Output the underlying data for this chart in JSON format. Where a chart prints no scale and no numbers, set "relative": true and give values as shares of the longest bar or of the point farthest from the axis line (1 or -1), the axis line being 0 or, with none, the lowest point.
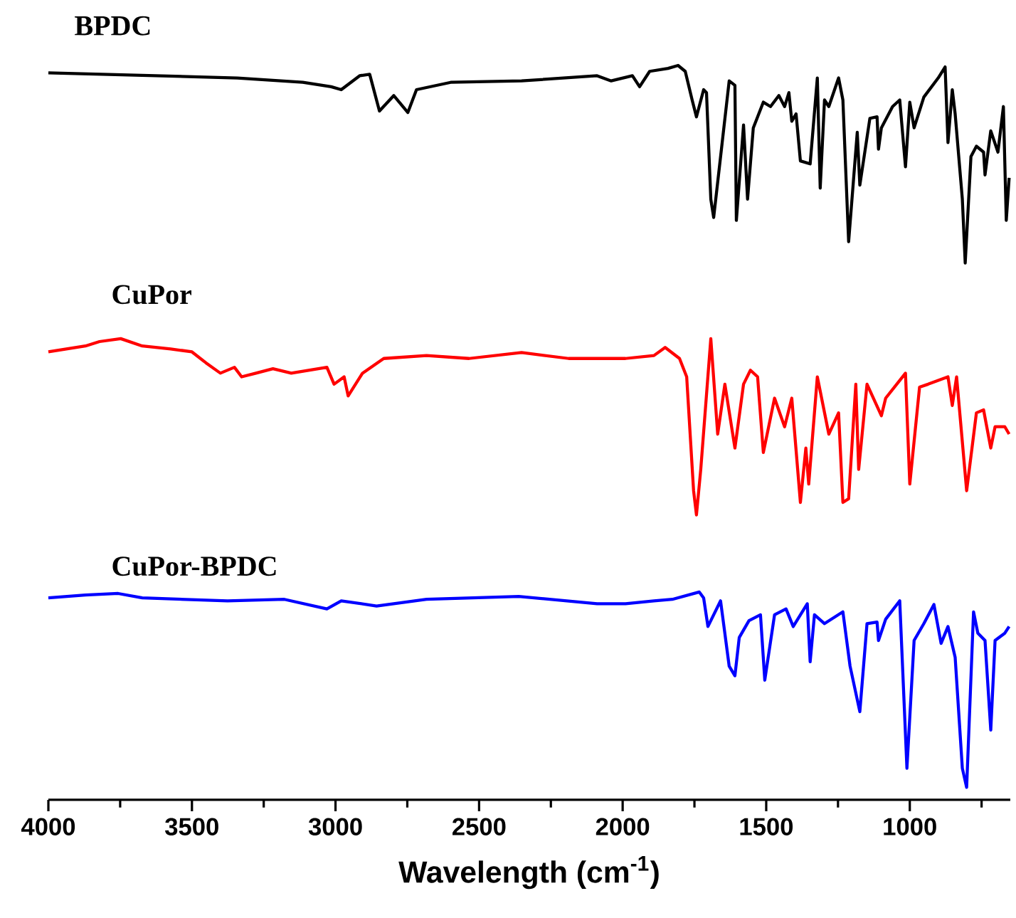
{
  "chart_data": {
    "type": "line",
    "relative": true,
    "xlabel": "Wavelength (cm$^{-1}$)",
    "xlim": [
      4000,
      650
    ],
    "xticks": [
      4000,
      {
        "value": 3750,
        "label": null
      },
      3500,
      {
        "value": 3250,
        "label": null
      },
      3000,
      {
        "value": 2750,
        "label": null
      },
      2500,
      {
        "value": 2250,
        "label": null
      },
      2000,
      {
        "value": 1750,
        "label": null
      },
      1500,
      {
        "value": 1250,
        "label": null
      },
      1000,
      {
        "value": 750,
        "label": null
      }
    ],
    "series": [
      {
        "name": "BPDC",
        "color": "#000000",
        "x": [
          4000,
          3342,
          3114,
          3015,
          2980,
          2916,
          2881,
          2847,
          2797,
          2748,
          2718,
          2599,
          2352,
          2089,
          2040,
          1966,
          1941,
          1906,
          1842,
          1807,
          1782,
          1758,
          1743,
          1718,
          1708,
          1693,
          1683,
          1629,
          1609,
          1604,
          1579,
          1565,
          1545,
          1510,
          1485,
          1456,
          1436,
          1421,
          1411,
          1396,
          1381,
          1347,
          1322,
          1312,
          1297,
          1282,
          1248,
          1233,
          1213,
          1183,
          1174,
          1139,
          1114,
          1109,
          1099,
          1060,
          1035,
          1015,
          1000,
          985,
          951,
          901,
          877,
          867,
          852,
          842,
          817,
          807,
          787,
          768,
          743,
          738,
          718,
          693,
          674,
          664,
          654
        ],
        "values": [
          0.99,
          0.983,
          0.977,
          0.971,
          0.967,
          0.986,
          0.988,
          0.938,
          0.959,
          0.936,
          0.967,
          0.977,
          0.979,
          0.986,
          0.979,
          0.986,
          0.971,
          0.992,
          0.996,
          1.0,
          0.992,
          0.953,
          0.93,
          0.967,
          0.963,
          0.818,
          0.793,
          0.979,
          0.973,
          0.789,
          0.919,
          0.818,
          0.915,
          0.95,
          0.944,
          0.959,
          0.944,
          0.963,
          0.924,
          0.934,
          0.87,
          0.866,
          0.983,
          0.833,
          0.953,
          0.944,
          0.983,
          0.953,
          0.76,
          0.909,
          0.837,
          0.928,
          0.93,
          0.886,
          0.915,
          0.944,
          0.953,
          0.862,
          0.95,
          0.915,
          0.957,
          0.983,
          0.998,
          0.895,
          0.967,
          0.934,
          0.818,
          0.731,
          0.876,
          0.89,
          0.882,
          0.851,
          0.911,
          0.882,
          0.944,
          0.789,
          0.847
        ]
      },
      {
        "name": "CuPor",
        "color": "#ff0000",
        "x": [
          4000,
          3871,
          3822,
          3748,
          3673,
          3574,
          3500,
          3451,
          3401,
          3352,
          3327,
          3277,
          3218,
          3154,
          3030,
          3005,
          2970,
          2956,
          2906,
          2832,
          2683,
          2535,
          2352,
          2188,
          2089,
          1990,
          1891,
          1852,
          1802,
          1777,
          1753,
          1743,
          1728,
          1693,
          1669,
          1644,
          1609,
          1579,
          1555,
          1530,
          1510,
          1471,
          1436,
          1411,
          1381,
          1362,
          1352,
          1322,
          1282,
          1248,
          1233,
          1213,
          1188,
          1178,
          1149,
          1099,
          1084,
          1015,
          1000,
          966,
          936,
          867,
          852,
          837,
          802,
          768,
          743,
          718,
          703,
          669,
          654
        ],
        "values": [
          0.61,
          0.618,
          0.624,
          0.628,
          0.618,
          0.614,
          0.61,
          0.595,
          0.581,
          0.589,
          0.576,
          0.581,
          0.587,
          0.581,
          0.589,
          0.566,
          0.576,
          0.55,
          0.581,
          0.601,
          0.605,
          0.601,
          0.609,
          0.601,
          0.601,
          0.601,
          0.605,
          0.616,
          0.601,
          0.576,
          0.421,
          0.388,
          0.45,
          0.628,
          0.498,
          0.566,
          0.479,
          0.566,
          0.585,
          0.576,
          0.473,
          0.547,
          0.508,
          0.547,
          0.405,
          0.479,
          0.43,
          0.576,
          0.498,
          0.527,
          0.405,
          0.41,
          0.566,
          0.45,
          0.566,
          0.523,
          0.547,
          0.581,
          0.43,
          0.562,
          0.566,
          0.576,
          0.537,
          0.576,
          0.421,
          0.527,
          0.531,
          0.479,
          0.508,
          0.508,
          0.498
        ]
      },
      {
        "name": "CuPor-BPDC",
        "color": "#0000ff",
        "x": [
          4000,
          3871,
          3757,
          3673,
          3376,
          3178,
          3030,
          2980,
          2857,
          2683,
          2362,
          2089,
          1990,
          1891,
          1827,
          1733,
          1718,
          1703,
          1659,
          1629,
          1609,
          1594,
          1560,
          1520,
          1505,
          1471,
          1431,
          1406,
          1357,
          1347,
          1332,
          1297,
          1233,
          1208,
          1174,
          1149,
          1114,
          1109,
          1084,
          1035,
          1010,
          985,
          951,
          916,
          891,
          867,
          842,
          817,
          802,
          778,
          763,
          738,
          718,
          703,
          669,
          654
        ],
        "values": [
          0.275,
          0.279,
          0.281,
          0.275,
          0.271,
          0.273,
          0.26,
          0.271,
          0.264,
          0.273,
          0.277,
          0.267,
          0.267,
          0.271,
          0.273,
          0.283,
          0.275,
          0.236,
          0.271,
          0.182,
          0.169,
          0.221,
          0.244,
          0.252,
          0.163,
          0.252,
          0.26,
          0.236,
          0.267,
          0.188,
          0.252,
          0.24,
          0.256,
          0.182,
          0.12,
          0.24,
          0.242,
          0.217,
          0.246,
          0.271,
          0.043,
          0.217,
          0.24,
          0.266,
          0.213,
          0.236,
          0.194,
          0.043,
          0.017,
          0.256,
          0.227,
          0.217,
          0.095,
          0.217,
          0.227,
          0.236
        ]
      }
    ]
  }
}
